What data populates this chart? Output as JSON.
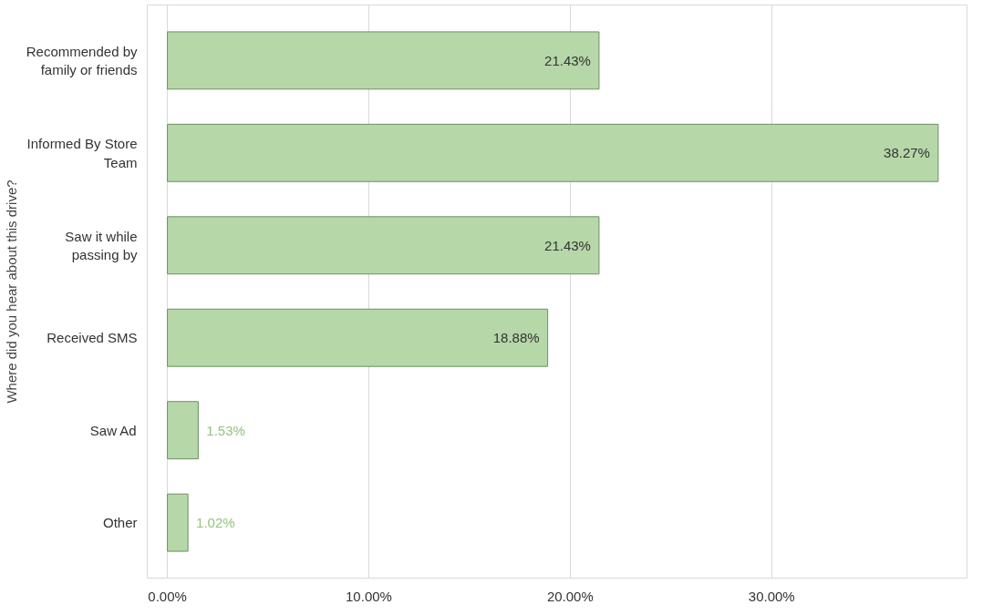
{
  "chart_data": {
    "type": "bar",
    "orientation": "horizontal",
    "ylabel": "Where did you hear about this drive?",
    "categories": [
      "Recommended by family or friends",
      "Informed By Store Team",
      "Saw it while passing by",
      "Received SMS",
      "Saw Ad",
      "Other"
    ],
    "values": [
      21.43,
      38.27,
      21.43,
      18.88,
      1.53,
      1.02
    ],
    "value_labels": [
      "21.43%",
      "38.27%",
      "21.43%",
      "18.88%",
      "1.53%",
      "1.02%"
    ],
    "color": "#b6d7a8",
    "xlim": [
      -1,
      39.7
    ],
    "xticks": [
      {
        "value": 0,
        "label": "0.00%"
      },
      {
        "value": 10,
        "label": "10.00%"
      },
      {
        "value": 20,
        "label": "20.00%"
      },
      {
        "value": 30,
        "label": "30.00%"
      }
    ],
    "grid": "x"
  }
}
